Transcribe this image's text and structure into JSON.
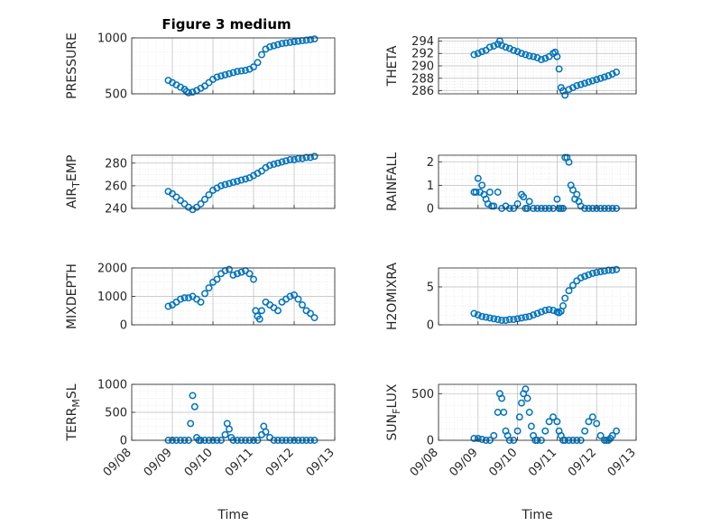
{
  "figure": {
    "title": "Figure 3 medium"
  },
  "colors": {
    "marker": "#0072BD",
    "axis": "#262626",
    "grid": "#bdbdbd",
    "background": "#ffffff"
  },
  "chart_data": [
    {
      "id": "pressure",
      "type": "scatter",
      "ylabel": "PRESSURE",
      "ylim": [
        500,
        1000
      ],
      "yticks": [
        "500",
        "1000"
      ],
      "ytickvals": [
        500,
        1000
      ],
      "x": [
        8.9,
        9.0,
        9.1,
        9.2,
        9.3,
        9.35,
        9.4,
        9.5,
        9.6,
        9.7,
        9.8,
        9.9,
        10.0,
        10.1,
        10.2,
        10.3,
        10.4,
        10.5,
        10.6,
        10.7,
        10.8,
        10.9,
        11.0,
        11.1,
        11.2,
        11.3,
        11.4,
        11.5,
        11.6,
        11.7,
        11.8,
        11.9,
        12.0,
        12.1,
        12.2,
        12.3,
        12.4,
        12.5
      ],
      "y": [
        620,
        600,
        580,
        560,
        540,
        520,
        510,
        515,
        530,
        550,
        570,
        600,
        630,
        650,
        660,
        670,
        680,
        690,
        700,
        705,
        710,
        720,
        740,
        780,
        850,
        900,
        920,
        930,
        940,
        950,
        955,
        960,
        965,
        970,
        975,
        980,
        985,
        990
      ]
    },
    {
      "id": "theta",
      "type": "scatter",
      "ylabel": "THETA",
      "ylim": [
        285.5,
        294.5
      ],
      "yticks": [
        "286",
        "288",
        "290",
        "292",
        "294"
      ],
      "ytickvals": [
        286,
        288,
        290,
        292,
        294
      ],
      "x": [
        8.9,
        9.0,
        9.1,
        9.2,
        9.3,
        9.4,
        9.5,
        9.55,
        9.6,
        9.7,
        9.8,
        9.9,
        10.0,
        10.1,
        10.2,
        10.3,
        10.4,
        10.5,
        10.6,
        10.7,
        10.8,
        10.9,
        10.95,
        11.0,
        11.05,
        11.1,
        11.15,
        11.2,
        11.3,
        11.4,
        11.5,
        11.6,
        11.7,
        11.8,
        11.9,
        12.0,
        12.1,
        12.2,
        12.3,
        12.4,
        12.5
      ],
      "y": [
        291.8,
        292.0,
        292.3,
        292.5,
        293.0,
        293.2,
        293.5,
        294.0,
        293.3,
        293.0,
        292.8,
        292.5,
        292.3,
        292.0,
        291.8,
        291.6,
        291.5,
        291.3,
        291.0,
        291.2,
        291.5,
        292.0,
        292.2,
        291.5,
        289.5,
        286.5,
        286.0,
        285.3,
        286.2,
        286.5,
        286.8,
        287.0,
        287.2,
        287.4,
        287.6,
        287.8,
        288.0,
        288.2,
        288.4,
        288.7,
        289.0
      ]
    },
    {
      "id": "air-temp",
      "type": "scatter",
      "ylabel": "AIR_TEMP",
      "ylim": [
        240,
        287
      ],
      "yticks": [
        "240",
        "260",
        "280"
      ],
      "ytickvals": [
        240,
        260,
        280
      ],
      "x": [
        8.9,
        9.0,
        9.1,
        9.2,
        9.3,
        9.4,
        9.5,
        9.6,
        9.7,
        9.8,
        9.9,
        10.0,
        10.1,
        10.2,
        10.3,
        10.4,
        10.5,
        10.6,
        10.7,
        10.8,
        10.9,
        11.0,
        11.1,
        11.2,
        11.3,
        11.4,
        11.5,
        11.6,
        11.7,
        11.8,
        11.9,
        12.0,
        12.1,
        12.2,
        12.3,
        12.4,
        12.5
      ],
      "y": [
        255,
        253,
        250,
        247,
        244,
        241,
        239,
        241,
        244,
        248,
        252,
        256,
        258,
        260,
        261,
        262,
        263,
        264,
        265,
        266,
        267,
        269,
        271,
        273,
        276,
        278,
        279,
        280,
        281,
        282,
        283,
        283,
        284,
        284,
        285,
        285,
        286
      ]
    },
    {
      "id": "rainfall",
      "type": "scatter",
      "ylabel": "RAINFALL",
      "ylim": [
        0,
        2.3
      ],
      "yticks": [
        "0",
        "1",
        "2"
      ],
      "ytickvals": [
        0,
        1,
        2
      ],
      "x": [
        8.9,
        8.95,
        9.0,
        9.05,
        9.1,
        9.15,
        9.2,
        9.25,
        9.3,
        9.35,
        9.4,
        9.5,
        9.6,
        9.7,
        9.8,
        9.9,
        10.0,
        10.1,
        10.15,
        10.2,
        10.25,
        10.3,
        10.4,
        10.5,
        10.6,
        10.7,
        10.8,
        10.9,
        11.0,
        11.05,
        11.1,
        11.15,
        11.2,
        11.25,
        11.3,
        11.35,
        11.4,
        11.45,
        11.5,
        11.55,
        11.6,
        11.7,
        11.8,
        11.9,
        12.0,
        12.1,
        12.2,
        12.3,
        12.4,
        12.5
      ],
      "y": [
        0.7,
        0.7,
        1.3,
        0.7,
        1.0,
        0.6,
        0.4,
        0.2,
        0.7,
        0.1,
        0.1,
        0.7,
        0.0,
        0.1,
        0.0,
        0.0,
        0.2,
        0.6,
        0.5,
        0.0,
        0.0,
        0.3,
        0.0,
        0.0,
        0.0,
        0.0,
        0.0,
        0.0,
        0.4,
        0.0,
        0.0,
        0.0,
        2.2,
        2.2,
        2.0,
        1.0,
        0.8,
        0.4,
        0.6,
        0.3,
        0.1,
        0.0,
        0.0,
        0.0,
        0.0,
        0.0,
        0.0,
        0.0,
        0.0,
        0.0
      ]
    },
    {
      "id": "mixdepth",
      "type": "scatter",
      "ylabel": "MIXDEPTH",
      "ylim": [
        0,
        2000
      ],
      "yticks": [
        "0",
        "1000",
        "2000"
      ],
      "ytickvals": [
        0,
        1000,
        2000
      ],
      "x": [
        8.9,
        9.0,
        9.1,
        9.2,
        9.3,
        9.4,
        9.5,
        9.6,
        9.7,
        9.8,
        9.9,
        10.0,
        10.1,
        10.2,
        10.3,
        10.4,
        10.5,
        10.6,
        10.7,
        10.8,
        10.9,
        11.0,
        11.05,
        11.1,
        11.15,
        11.2,
        11.3,
        11.4,
        11.5,
        11.6,
        11.7,
        11.8,
        11.9,
        12.0,
        12.1,
        12.2,
        12.3,
        12.4,
        12.5
      ],
      "y": [
        650,
        700,
        800,
        900,
        950,
        950,
        1000,
        900,
        800,
        1100,
        1300,
        1500,
        1600,
        1800,
        1900,
        1950,
        1750,
        1800,
        1850,
        1900,
        1800,
        1600,
        500,
        300,
        200,
        500,
        800,
        700,
        600,
        500,
        800,
        900,
        1000,
        1050,
        900,
        700,
        500,
        400,
        250
      ]
    },
    {
      "id": "h2omixra",
      "type": "scatter",
      "ylabel": "H2OMIXRA",
      "ylim": [
        0,
        7.5
      ],
      "yticks": [
        "0",
        "5"
      ],
      "ytickvals": [
        0,
        5
      ],
      "x": [
        8.9,
        9.0,
        9.1,
        9.2,
        9.3,
        9.4,
        9.5,
        9.6,
        9.7,
        9.8,
        9.9,
        10.0,
        10.1,
        10.2,
        10.3,
        10.4,
        10.5,
        10.6,
        10.7,
        10.8,
        10.9,
        11.0,
        11.05,
        11.1,
        11.15,
        11.2,
        11.3,
        11.4,
        11.5,
        11.6,
        11.7,
        11.8,
        11.9,
        12.0,
        12.1,
        12.2,
        12.3,
        12.4,
        12.5
      ],
      "y": [
        1.5,
        1.3,
        1.1,
        1.0,
        0.9,
        0.8,
        0.7,
        0.6,
        0.6,
        0.7,
        0.7,
        0.8,
        0.9,
        1.0,
        1.1,
        1.3,
        1.5,
        1.7,
        1.9,
        2.0,
        1.9,
        1.7,
        1.6,
        1.8,
        2.5,
        3.5,
        4.5,
        5.2,
        5.8,
        6.2,
        6.4,
        6.6,
        6.8,
        6.9,
        7.0,
        7.1,
        7.2,
        7.2,
        7.3
      ]
    },
    {
      "id": "terr-msl",
      "type": "scatter",
      "ylabel": "TERR_MSL",
      "ylim": [
        0,
        1000
      ],
      "yticks": [
        "0",
        "500",
        "1000"
      ],
      "ytickvals": [
        0,
        500,
        1000
      ],
      "xticks": [
        "09/08",
        "09/09",
        "09/10",
        "09/11",
        "09/12",
        "09/13"
      ],
      "xtickvals": [
        8,
        9,
        10,
        11,
        12,
        13
      ],
      "xlim": [
        8,
        13
      ],
      "xlabel": "Time",
      "x": [
        8.9,
        9.0,
        9.1,
        9.2,
        9.3,
        9.4,
        9.45,
        9.5,
        9.55,
        9.6,
        9.65,
        9.7,
        9.8,
        9.9,
        10.0,
        10.1,
        10.2,
        10.3,
        10.35,
        10.4,
        10.45,
        10.5,
        10.6,
        10.7,
        10.8,
        10.9,
        11.0,
        11.1,
        11.2,
        11.25,
        11.3,
        11.4,
        11.5,
        11.6,
        11.7,
        11.8,
        11.9,
        12.0,
        12.1,
        12.2,
        12.3,
        12.4,
        12.5
      ],
      "y": [
        0,
        0,
        0,
        0,
        0,
        0,
        300,
        800,
        600,
        50,
        0,
        0,
        0,
        0,
        0,
        0,
        0,
        100,
        300,
        200,
        50,
        0,
        0,
        0,
        0,
        0,
        0,
        0,
        100,
        250,
        150,
        50,
        0,
        0,
        0,
        0,
        0,
        0,
        0,
        0,
        0,
        0,
        0
      ]
    },
    {
      "id": "sun-flux",
      "type": "scatter",
      "ylabel": "SUN_FLUX",
      "ylim": [
        0,
        600
      ],
      "yticks": [
        "0",
        "500"
      ],
      "ytickvals": [
        0,
        500
      ],
      "xticks": [
        "09/08",
        "09/09",
        "09/10",
        "09/11",
        "09/12",
        "09/13"
      ],
      "xtickvals": [
        8,
        9,
        10,
        11,
        12,
        13
      ],
      "xlim": [
        8,
        13
      ],
      "xlabel": "Time",
      "x": [
        8.9,
        9.0,
        9.1,
        9.2,
        9.3,
        9.4,
        9.5,
        9.55,
        9.6,
        9.65,
        9.7,
        9.75,
        9.8,
        9.9,
        10.0,
        10.05,
        10.1,
        10.15,
        10.2,
        10.25,
        10.3,
        10.35,
        10.4,
        10.45,
        10.5,
        10.6,
        10.7,
        10.8,
        10.9,
        11.0,
        11.05,
        11.1,
        11.15,
        11.2,
        11.3,
        11.4,
        11.5,
        11.6,
        11.7,
        11.8,
        11.9,
        12.0,
        12.1,
        12.2,
        12.25,
        12.3,
        12.35,
        12.4,
        12.5
      ],
      "y": [
        20,
        20,
        10,
        0,
        0,
        50,
        300,
        500,
        450,
        300,
        100,
        50,
        0,
        0,
        100,
        250,
        400,
        500,
        550,
        450,
        300,
        150,
        50,
        0,
        0,
        0,
        100,
        200,
        250,
        200,
        100,
        50,
        0,
        0,
        0,
        0,
        0,
        0,
        100,
        200,
        250,
        180,
        50,
        0,
        0,
        0,
        20,
        50,
        100
      ]
    }
  ]
}
